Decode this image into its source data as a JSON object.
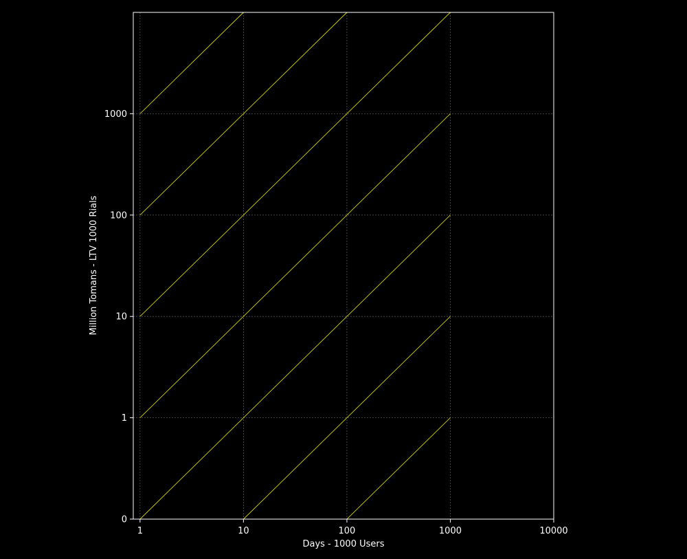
{
  "chart_data": {
    "type": "line",
    "title": "",
    "xlabel": "Days   -   1000 Users",
    "ylabel": "Million Tomans   -   LTV 1000 Rials",
    "x_scale": "log",
    "y_scale": "log",
    "xlim": [
      0.86,
      10000
    ],
    "ylim": [
      0.1,
      10000
    ],
    "x_ticks": [
      {
        "value": 1,
        "label": "1"
      },
      {
        "value": 10,
        "label": "10"
      },
      {
        "value": 100,
        "label": "100"
      },
      {
        "value": 1000,
        "label": "1000"
      },
      {
        "value": 10000,
        "label": "10000"
      }
    ],
    "y_ticks": [
      {
        "value": 0.1,
        "label": "0"
      },
      {
        "value": 1,
        "label": "1"
      },
      {
        "value": 10,
        "label": "10"
      },
      {
        "value": 100,
        "label": "100"
      },
      {
        "value": 1000,
        "label": "1000"
      }
    ],
    "grid": true,
    "series": [
      {
        "x": [
          1,
          10
        ],
        "y": [
          1000,
          10000
        ]
      },
      {
        "x": [
          1,
          100
        ],
        "y": [
          100,
          10000
        ]
      },
      {
        "x": [
          1,
          1000
        ],
        "y": [
          10,
          10000
        ]
      },
      {
        "x": [
          1,
          1000
        ],
        "y": [
          1,
          1000
        ]
      },
      {
        "x": [
          1,
          1000
        ],
        "y": [
          0.1,
          100
        ]
      },
      {
        "x": [
          10,
          1000
        ],
        "y": [
          0.1,
          10
        ]
      },
      {
        "x": [
          100,
          1000
        ],
        "y": [
          0.1,
          1
        ]
      }
    ]
  },
  "colors": {
    "background": "#000000",
    "axes": "#ffffff",
    "grid": "#555555",
    "line": "#d4d400",
    "text": "#ffffff"
  }
}
